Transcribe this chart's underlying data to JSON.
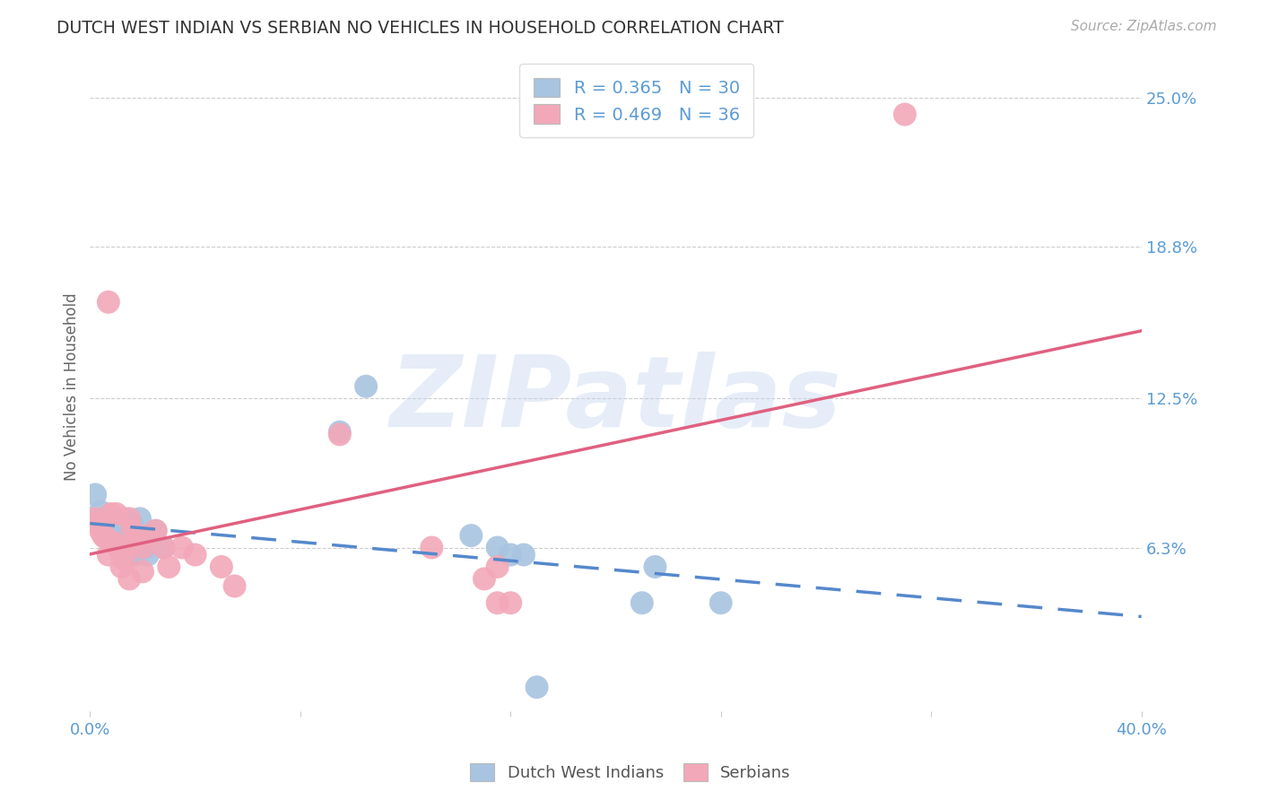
{
  "title": "DUTCH WEST INDIAN VS SERBIAN NO VEHICLES IN HOUSEHOLD CORRELATION CHART",
  "source": "Source: ZipAtlas.com",
  "ylabel": "No Vehicles in Household",
  "xlim": [
    0.0,
    0.4
  ],
  "ylim": [
    -0.005,
    0.265
  ],
  "ytick_labels_right": [
    "25.0%",
    "18.8%",
    "12.5%",
    "6.3%"
  ],
  "ytick_vals_right": [
    0.25,
    0.188,
    0.125,
    0.063
  ],
  "watermark": "ZIPatlas",
  "legend_label1": "R = 0.365   N = 30",
  "legend_label2": "R = 0.469   N = 36",
  "series1_label": "Dutch West Indians",
  "series2_label": "Serbians",
  "series1_color": "#a8c4e0",
  "series2_color": "#f2a8b8",
  "series1_line_color": "#5588cc",
  "series2_line_color": "#e06080",
  "series1_x": [
    0.002,
    0.004,
    0.005,
    0.006,
    0.007,
    0.008,
    0.009,
    0.01,
    0.011,
    0.012,
    0.013,
    0.015,
    0.016,
    0.017,
    0.019,
    0.02,
    0.021,
    0.022,
    0.025,
    0.028,
    0.095,
    0.105,
    0.145,
    0.155,
    0.16,
    0.165,
    0.21,
    0.215,
    0.24,
    0.17
  ],
  "series1_y": [
    0.085,
    0.078,
    0.075,
    0.073,
    0.07,
    0.068,
    0.067,
    0.066,
    0.065,
    0.063,
    0.075,
    0.06,
    0.073,
    0.06,
    0.075,
    0.063,
    0.063,
    0.06,
    0.07,
    0.063,
    0.111,
    0.13,
    0.068,
    0.063,
    0.06,
    0.06,
    0.04,
    0.055,
    0.04,
    0.005
  ],
  "series2_x": [
    0.002,
    0.003,
    0.004,
    0.005,
    0.006,
    0.007,
    0.008,
    0.009,
    0.01,
    0.011,
    0.012,
    0.013,
    0.014,
    0.015,
    0.016,
    0.018,
    0.02,
    0.022,
    0.025,
    0.028,
    0.03,
    0.035,
    0.04,
    0.05,
    0.055,
    0.095,
    0.13,
    0.15,
    0.155,
    0.31,
    0.007,
    0.012,
    0.015,
    0.02,
    0.155,
    0.16
  ],
  "series2_y": [
    0.075,
    0.073,
    0.07,
    0.068,
    0.067,
    0.165,
    0.077,
    0.065,
    0.077,
    0.063,
    0.06,
    0.058,
    0.063,
    0.075,
    0.07,
    0.067,
    0.063,
    0.068,
    0.07,
    0.063,
    0.055,
    0.063,
    0.06,
    0.055,
    0.047,
    0.11,
    0.063,
    0.05,
    0.055,
    0.243,
    0.06,
    0.055,
    0.05,
    0.053,
    0.04,
    0.04
  ],
  "background_color": "#ffffff",
  "grid_color": "#cccccc",
  "title_color": "#333333",
  "tick_color": "#5b9bd5"
}
